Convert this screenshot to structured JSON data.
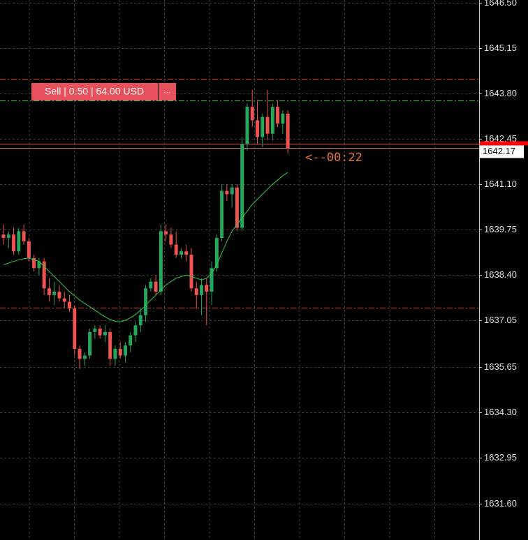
{
  "chart_data": {
    "type": "candlestick",
    "ylim": [
      1630.51,
      1646.58
    ],
    "yticks": [
      {
        "value": 1646.5,
        "label": "1646.50"
      },
      1645.15,
      {
        "value": 1643.8,
        "label": "1643.80"
      },
      1642.45,
      {
        "value": 1641.1,
        "label": "1641.10"
      },
      1639.75,
      {
        "value": 1638.4,
        "label": "1638.40"
      },
      1637.05,
      1635.65,
      {
        "value": 1634.3,
        "label": "1634.30"
      },
      1632.95,
      {
        "value": 1631.6,
        "label": "1631.60"
      }
    ],
    "grid": true,
    "up_color": "#26a65b",
    "down_color": "#ef5350",
    "ma_color": "#2ecc40",
    "open": [
      1639.6,
      1639.5,
      1639.6,
      1639.1,
      1639.7,
      1639.4,
      1638.9,
      1638.6,
      1638.8,
      1638.0,
      1637.8,
      1637.9,
      1637.7,
      1637.6,
      1637.4,
      1636.2,
      1635.9,
      1636.0,
      1636.7,
      1636.8,
      1636.6,
      1636.7,
      1635.9,
      1636.2,
      1636.0,
      1636.3,
      1636.6,
      1636.9,
      1637.2,
      1638.0,
      1638.2,
      1637.9,
      1639.7,
      1639.6,
      1639.3,
      1639.0,
      1639.1,
      1639.0,
      1638.0,
      1637.8,
      1638.1,
      1637.9,
      1638.6,
      1639.5,
      1640.9,
      1640.8,
      1641.0,
      1639.8,
      1642.3,
      1643.4,
      1643.0,
      1642.5,
      1643.1,
      1642.6,
      1643.4,
      1642.9,
      1643.2
    ],
    "high": [
      1639.9,
      1639.7,
      1639.8,
      1639.8,
      1639.9,
      1639.5,
      1639.0,
      1638.9,
      1638.9,
      1638.3,
      1638.2,
      1638.1,
      1637.9,
      1637.8,
      1637.5,
      1636.3,
      1636.1,
      1636.8,
      1636.9,
      1636.9,
      1636.9,
      1636.8,
      1636.3,
      1636.4,
      1636.4,
      1636.7,
      1637.0,
      1637.4,
      1638.1,
      1638.3,
      1638.4,
      1639.9,
      1639.9,
      1639.8,
      1639.7,
      1639.2,
      1639.3,
      1639.2,
      1638.2,
      1638.3,
      1638.3,
      1638.8,
      1639.6,
      1641.1,
      1641.1,
      1641.1,
      1641.1,
      1642.5,
      1643.5,
      1643.9,
      1643.6,
      1643.2,
      1643.9,
      1643.5,
      1643.6,
      1643.3,
      1643.3
    ],
    "low": [
      1639.3,
      1639.2,
      1639.0,
      1639.0,
      1639.3,
      1638.8,
      1638.5,
      1638.4,
      1637.8,
      1637.6,
      1637.5,
      1637.6,
      1637.4,
      1637.3,
      1636.0,
      1635.6,
      1635.7,
      1635.9,
      1636.5,
      1636.5,
      1636.4,
      1635.7,
      1635.7,
      1635.9,
      1635.8,
      1636.1,
      1636.4,
      1636.7,
      1637.0,
      1637.9,
      1637.8,
      1637.8,
      1639.4,
      1639.2,
      1638.9,
      1638.9,
      1638.8,
      1637.9,
      1637.4,
      1637.2,
      1636.9,
      1637.5,
      1638.5,
      1639.4,
      1640.6,
      1640.4,
      1639.7,
      1639.7,
      1642.1,
      1642.8,
      1642.3,
      1642.2,
      1642.4,
      1642.4,
      1642.8,
      1642.6,
      1642.0
    ],
    "close": [
      1639.5,
      1639.6,
      1639.1,
      1639.7,
      1639.4,
      1638.9,
      1638.6,
      1638.8,
      1638.0,
      1637.8,
      1637.9,
      1637.7,
      1637.6,
      1637.4,
      1636.2,
      1635.9,
      1636.0,
      1636.7,
      1636.8,
      1636.6,
      1636.7,
      1635.9,
      1636.2,
      1636.0,
      1636.3,
      1636.6,
      1636.9,
      1637.2,
      1638.0,
      1638.2,
      1637.9,
      1639.7,
      1639.6,
      1639.3,
      1639.0,
      1639.1,
      1639.0,
      1638.0,
      1637.8,
      1638.1,
      1637.9,
      1638.6,
      1639.5,
      1640.9,
      1640.8,
      1641.0,
      1639.8,
      1642.3,
      1643.4,
      1643.0,
      1642.5,
      1643.1,
      1642.6,
      1643.4,
      1642.9,
      1643.2,
      1642.17
    ],
    "ma": [
      1638.7,
      1638.75,
      1638.8,
      1638.85,
      1638.88,
      1638.9,
      1638.85,
      1638.8,
      1638.65,
      1638.5,
      1638.35,
      1638.2,
      1638.05,
      1637.9,
      1637.78,
      1637.65,
      1637.55,
      1637.45,
      1637.35,
      1637.25,
      1637.15,
      1637.07,
      1637.02,
      1637.0,
      1637.05,
      1637.12,
      1637.22,
      1637.35,
      1637.5,
      1637.65,
      1637.8,
      1637.95,
      1638.1,
      1638.2,
      1638.3,
      1638.35,
      1638.4,
      1638.35,
      1638.3,
      1638.25,
      1638.3,
      1638.45,
      1638.7,
      1639.05,
      1639.4,
      1639.7,
      1639.9,
      1640.1,
      1640.3,
      1640.5,
      1640.65,
      1640.8,
      1640.95,
      1641.1,
      1641.22,
      1641.35,
      1641.45
    ],
    "levels": [
      {
        "value": 1644.23,
        "color": "#d63a2f"
      },
      {
        "value": 1643.59,
        "color": "#35c635"
      },
      {
        "value": 1637.42,
        "color": "#d63a2f"
      }
    ],
    "bid_line": 1642.3,
    "current_price": 1642.17,
    "countdown": "<--00:22"
  },
  "order_button": {
    "label": "Sell | 0.50 | 64.00 USD",
    "menu": "..."
  }
}
